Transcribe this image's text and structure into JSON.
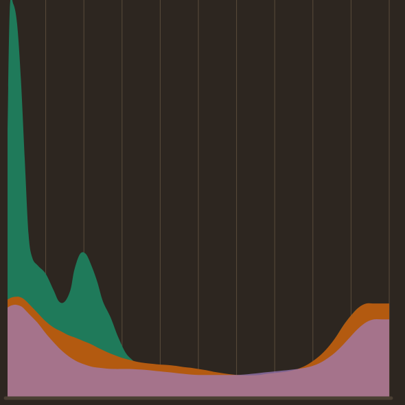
{
  "colors": {
    "background": "#2d2620",
    "gridline": "#5a4c3b",
    "baseline": "#4a3f33"
  },
  "chart_data": {
    "type": "area",
    "title": "",
    "xlabel": "",
    "ylabel": "",
    "xlim": [
      0,
      100
    ],
    "ylim": [
      0,
      100
    ],
    "grid": {
      "vertical": true,
      "horizontal": false,
      "count": 10
    },
    "legend": "none",
    "series": [
      {
        "color": "#1f7a5a",
        "opacity": 1,
        "x": [
          0,
          0.6,
          1.5,
          2.5,
          3.5,
          4.5,
          5.5,
          6.5,
          8,
          10,
          12,
          13.5,
          15,
          16.5,
          17.5,
          19,
          20.5,
          22,
          23.5,
          25,
          27,
          29,
          31,
          33,
          35,
          37,
          39,
          41,
          43,
          45,
          46.5,
          48,
          50,
          52,
          54,
          56,
          58,
          60,
          62,
          64,
          66,
          68,
          70,
          72,
          74,
          76,
          78,
          80,
          82,
          84,
          86,
          88,
          90,
          92,
          94,
          96,
          98,
          100
        ],
        "y": [
          67,
          98,
          99,
          94,
          80,
          60,
          41,
          35,
          33,
          31,
          27,
          24,
          24,
          27,
          32,
          36,
          36,
          33,
          29,
          24,
          20,
          15,
          11,
          9,
          7,
          6,
          6,
          5,
          4,
          3,
          2.5,
          2,
          2,
          2.3,
          2.2,
          2,
          1.2,
          0.8,
          0.6,
          0.7,
          1,
          1,
          1,
          1.2,
          1.6,
          2.3,
          3.5,
          5.5,
          8.5,
          12,
          15,
          18,
          20.5,
          22.5,
          23,
          23,
          23,
          23
        ]
      },
      {
        "color": "#b35a10",
        "opacity": 1,
        "x": [
          0,
          1,
          2,
          3,
          4,
          5,
          6,
          8,
          10,
          12,
          14,
          16,
          18,
          20,
          22,
          24,
          26,
          28,
          30,
          32,
          34,
          36,
          38,
          40,
          42,
          44,
          46,
          48,
          50,
          52,
          54,
          56,
          58,
          60,
          62,
          64,
          66,
          68,
          70,
          72,
          74,
          76,
          78,
          80,
          82,
          84,
          86,
          88,
          90,
          92,
          94,
          96,
          98,
          100
        ],
        "y": [
          24.5,
          25,
          25.2,
          25.2,
          24.8,
          24,
          23,
          21,
          19,
          17.5,
          16.5,
          15.5,
          14.8,
          14,
          13.2,
          12.2,
          11.3,
          10.5,
          9.8,
          9.3,
          8.8,
          8.5,
          8.3,
          8.1,
          8,
          7.8,
          7.5,
          7.3,
          7,
          6.7,
          6.3,
          6,
          5.7,
          5.5,
          5.4,
          5.4,
          5.5,
          5.8,
          6,
          6.2,
          6.5,
          7,
          7.8,
          9,
          10.5,
          12.5,
          15,
          18,
          20.5,
          22.5,
          23.5,
          23.5,
          23.5,
          23.5
        ]
      },
      {
        "color": "#a07dc0",
        "opacity": 0.7,
        "x": [
          0,
          1,
          2,
          3,
          4,
          5,
          6,
          8,
          10,
          12,
          14,
          16,
          18,
          20,
          22,
          24,
          26,
          28,
          30,
          32,
          34,
          36,
          38,
          40,
          42,
          44,
          46,
          48,
          50,
          52,
          54,
          56,
          58,
          60,
          62,
          64,
          66,
          68,
          70,
          72,
          74,
          76,
          78,
          80,
          82,
          84,
          86,
          88,
          90,
          92,
          94,
          96,
          98,
          100
        ],
        "y": [
          22.5,
          23,
          23.2,
          23,
          22.5,
          21.5,
          20.5,
          18.5,
          16,
          13.8,
          11.8,
          10.2,
          9,
          8.2,
          7.6,
          7.3,
          7.1,
          7,
          7,
          7,
          6.9,
          6.8,
          6.6,
          6.4,
          6.2,
          6,
          5.8,
          5.6,
          5.5,
          5.5,
          5.5,
          5.5,
          5.5,
          5.5,
          5.6,
          5.8,
          6,
          6.2,
          6.4,
          6.6,
          6.8,
          7,
          7.3,
          7.8,
          8.6,
          9.8,
          11.3,
          13.2,
          15.3,
          17.3,
          18.8,
          19.5,
          19.5,
          19.5
        ]
      }
    ]
  }
}
